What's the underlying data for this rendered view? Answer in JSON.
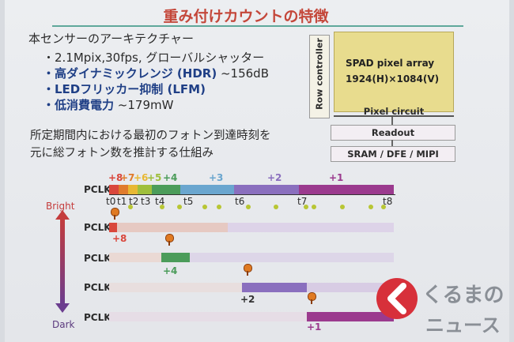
{
  "title": "重み付けカウントの特徴",
  "intro": "本センサーのアーキテクチャー",
  "specs": [
    {
      "bold": "・2.1Mpix,30fps, グローバルシャッター",
      "value": ""
    },
    {
      "bold": "・高ダイナミックレンジ (HDR)",
      "value": " ~156dB"
    },
    {
      "bold": "・LEDフリッカー抑制 (LFM)",
      "value": ""
    },
    {
      "bold": "・低消費電力",
      "value": " ~179mW"
    }
  ],
  "description": [
    "所定期間内における最初のフォトン到達時刻を",
    "元に総フォトン数を推計する仕組み"
  ],
  "diagram": {
    "row_controller": "Row controller",
    "spad_line1": "SPAD pixel array",
    "spad_line2": "1924(H)×1084(V)",
    "pixel_circuit": "Pixel circuit",
    "readout": "Readout",
    "interface": "SRAM / DFE / MIPI"
  },
  "timeline": {
    "pclk_label": "PCLK",
    "weights": [
      "+8",
      "+7",
      "+6",
      "+5",
      "+4",
      "+3",
      "+2",
      "+1"
    ],
    "time_labels": [
      "t0",
      "t1",
      "t2",
      "t3",
      "t4",
      "t5",
      "t6",
      "t7",
      "t8"
    ],
    "rows": [
      {
        "label": "PCLK",
        "value": "+8"
      },
      {
        "label": "PCLK",
        "value": "+4"
      },
      {
        "label": "PCLK",
        "value": "+2"
      },
      {
        "label": "PCLK",
        "value": "+1"
      }
    ],
    "bright": "Bright",
    "dark": "Dark"
  },
  "colors": {
    "w8": "#d9473c",
    "w7": "#e07b2c",
    "w6": "#e8b833",
    "w5": "#9fbf3c",
    "w4": "#4b9c5a",
    "w3": "#6aa6cf",
    "w2": "#8a6fbe",
    "w1": "#9b3a8e"
  },
  "logo": {
    "line1": "くるまの",
    "line2": "ニュース"
  }
}
